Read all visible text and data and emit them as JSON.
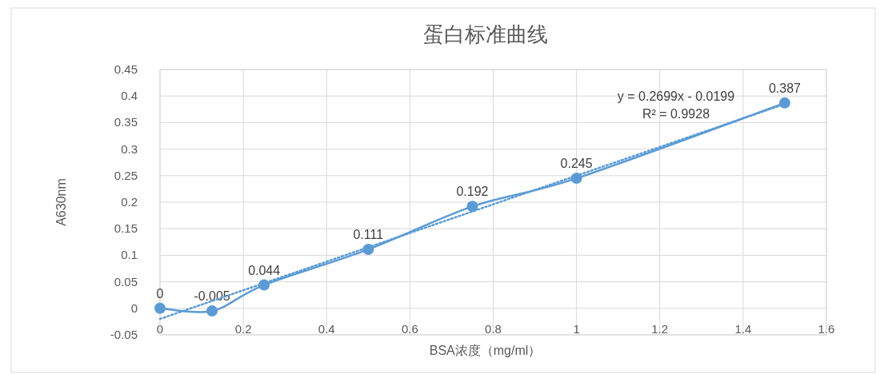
{
  "chart_data": {
    "type": "line",
    "title": "蛋白标准曲线",
    "xlabel": "BSA浓度（mg/ml）",
    "ylabel": "A630nm",
    "xlim": [
      0,
      1.6
    ],
    "xticks": [
      0,
      0.2,
      0.4,
      0.6,
      0.8,
      1,
      1.2,
      1.4,
      1.6
    ],
    "ylim": [
      -0.05,
      0.45
    ],
    "yticks": [
      -0.05,
      0,
      0.05,
      0.1,
      0.15,
      0.2,
      0.25,
      0.3,
      0.35,
      0.4,
      0.45
    ],
    "grid": true,
    "series": [
      {
        "type": "line",
        "color": "#5b9bd5",
        "marker": "circle",
        "line_style": "solid",
        "x": [
          0,
          0.125,
          0.25,
          0.5,
          0.75,
          1,
          1.5
        ],
        "values": [
          0,
          -0.005,
          0.044,
          0.111,
          0.192,
          0.245,
          0.387
        ],
        "value_labels": [
          "0",
          "-0.005",
          "0.044",
          "0.111",
          "0.192",
          "0.245",
          "0.387"
        ]
      },
      {
        "type": "line",
        "color": "#5b9bd5",
        "marker": "none",
        "line_style": "dotted",
        "x": [
          0,
          1.5
        ],
        "values": [
          -0.02,
          0.385
        ]
      }
    ],
    "annotations": [
      "y = 0.2699x - 0.0199",
      "R² = 0.9928"
    ]
  }
}
